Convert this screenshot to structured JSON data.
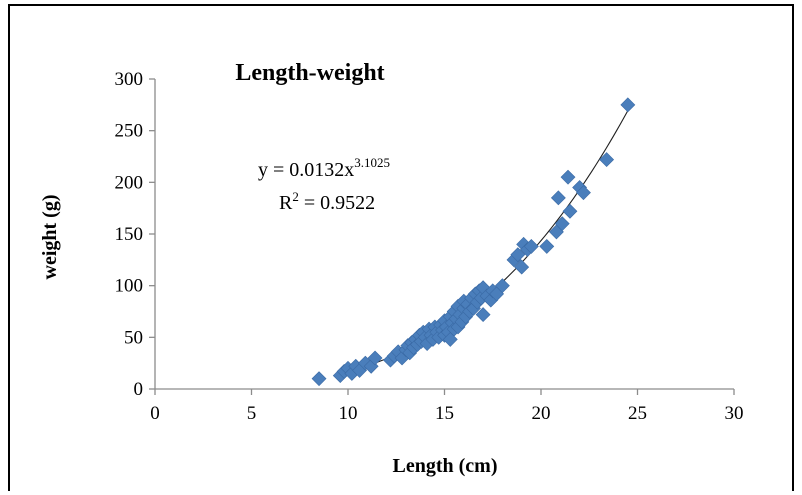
{
  "chart_data": {
    "type": "scatter",
    "title": "Length-weight",
    "xlabel": "Length (cm)",
    "ylabel": "weight (g)",
    "xlim": [
      0,
      30
    ],
    "ylim": [
      0,
      300
    ],
    "x_ticks": [
      "0",
      "5",
      "10",
      "15",
      "20",
      "25",
      "30"
    ],
    "y_ticks": [
      "0",
      "50",
      "100",
      "150",
      "200",
      "250",
      "300"
    ],
    "grid": false,
    "legend": "none",
    "marker": "diamond",
    "marker_color": "#4a7ebb",
    "trendline": {
      "type": "power",
      "coefficient": 0.0132,
      "exponent": 3.1025,
      "equation_prefix": "y = 0.0132x",
      "equation_exponent": "3.1025",
      "r2_prefix": "R",
      "r2_sup": "2",
      "r2_suffix": " = 0.9522",
      "x_range": [
        9.5,
        24.5
      ]
    },
    "points": [
      [
        8.5,
        10
      ],
      [
        9.6,
        13
      ],
      [
        9.8,
        17
      ],
      [
        10.0,
        20
      ],
      [
        10.2,
        15
      ],
      [
        10.4,
        22
      ],
      [
        10.6,
        18
      ],
      [
        10.9,
        25
      ],
      [
        11.2,
        22
      ],
      [
        11.4,
        30
      ],
      [
        12.2,
        28
      ],
      [
        12.4,
        32
      ],
      [
        12.6,
        36
      ],
      [
        12.8,
        30
      ],
      [
        13.0,
        38
      ],
      [
        13.1,
        42
      ],
      [
        13.2,
        35
      ],
      [
        13.3,
        45
      ],
      [
        13.4,
        40
      ],
      [
        13.5,
        48
      ],
      [
        13.6,
        43
      ],
      [
        13.7,
        52
      ],
      [
        13.8,
        46
      ],
      [
        13.9,
        55
      ],
      [
        14.0,
        50
      ],
      [
        14.1,
        44
      ],
      [
        14.2,
        58
      ],
      [
        14.3,
        52
      ],
      [
        14.4,
        48
      ],
      [
        14.5,
        60
      ],
      [
        14.6,
        55
      ],
      [
        14.7,
        50
      ],
      [
        14.8,
        62
      ],
      [
        14.9,
        57
      ],
      [
        15.0,
        52
      ],
      [
        15.0,
        66
      ],
      [
        15.1,
        60
      ],
      [
        15.2,
        55
      ],
      [
        15.3,
        70
      ],
      [
        15.3,
        48
      ],
      [
        15.4,
        64
      ],
      [
        15.5,
        75
      ],
      [
        15.5,
        58
      ],
      [
        15.6,
        68
      ],
      [
        15.7,
        80
      ],
      [
        15.7,
        60
      ],
      [
        15.8,
        72
      ],
      [
        15.9,
        65
      ],
      [
        16.0,
        78
      ],
      [
        16.0,
        85
      ],
      [
        16.1,
        70
      ],
      [
        16.2,
        82
      ],
      [
        16.3,
        75
      ],
      [
        16.4,
        88
      ],
      [
        16.5,
        78
      ],
      [
        16.6,
        92
      ],
      [
        16.7,
        84
      ],
      [
        16.8,
        95
      ],
      [
        16.9,
        88
      ],
      [
        17.0,
        98
      ],
      [
        17.0,
        72
      ],
      [
        17.2,
        90
      ],
      [
        17.4,
        86
      ],
      [
        17.5,
        95
      ],
      [
        17.7,
        92
      ],
      [
        18.0,
        100
      ],
      [
        18.6,
        125
      ],
      [
        18.8,
        130
      ],
      [
        19.0,
        118
      ],
      [
        19.1,
        140
      ],
      [
        19.3,
        135
      ],
      [
        19.5,
        138
      ],
      [
        20.3,
        138
      ],
      [
        20.8,
        152
      ],
      [
        20.9,
        185
      ],
      [
        21.1,
        160
      ],
      [
        21.4,
        205
      ],
      [
        21.5,
        172
      ],
      [
        22.0,
        195
      ],
      [
        22.2,
        190
      ],
      [
        23.4,
        222
      ],
      [
        24.5,
        275
      ]
    ]
  }
}
